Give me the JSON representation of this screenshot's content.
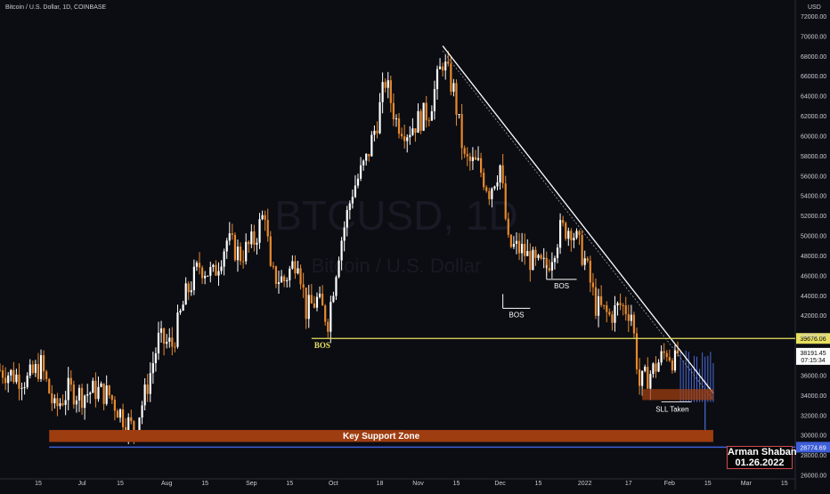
{
  "header": {
    "symbol_line": "Bitcoin / U.S. Dollar, 1D, COINBASE"
  },
  "price_axis": {
    "currency": "USD"
  },
  "watermark": {
    "symbol": "BTCUSD, 1D",
    "name": "Bitcoin / U.S. Dollar"
  },
  "author": {
    "name": "Arman Shaban",
    "date": "01.26.2022"
  },
  "colors": {
    "background": "#0c0d12",
    "up_candle": "#ffffff",
    "down_candle": "#e88a2e",
    "bos_line": "#e8e060",
    "support_fill": "#9e3d10",
    "support_line": "#3e5fd8",
    "trendline": "#ffffff",
    "liquidity_fill": "#9e3d10",
    "wick_blue": "#4a6ad8",
    "price_tag": "#ffffff"
  },
  "chart_data": {
    "type": "candlestick",
    "title": "Bitcoin / U.S. Dollar, 1D, COINBASE",
    "ylabel": "USD",
    "ylim": [
      25600,
      73600
    ],
    "y_ticks": [
      26000,
      28000,
      30000,
      32000,
      34000,
      36000,
      38000,
      40000,
      42000,
      44000,
      46000,
      48000,
      50000,
      52000,
      54000,
      56000,
      58000,
      60000,
      62000,
      64000,
      66000,
      68000,
      70000,
      72000
    ],
    "y_tick_labels": [
      "26000.00",
      "28000.00",
      "30000.00",
      "32000.00",
      "34000.00",
      "36000.00",
      "38000.00",
      "40000.00",
      "42000.00",
      "44000.00",
      "46000.00",
      "48000.00",
      "50000.00",
      "52000.00",
      "54000.00",
      "56000.00",
      "58000.00",
      "60000.00",
      "62000.00",
      "64000.00",
      "66000.00",
      "68000.00",
      "70000.00",
      "72000.00"
    ],
    "x_range": [
      "2021-06-01",
      "2022-03-19"
    ],
    "x_ticks": [
      {
        "date": "2021-06-01",
        "label": "Jun"
      },
      {
        "date": "2021-06-15",
        "label": "15"
      },
      {
        "date": "2021-07-01",
        "label": "Jul"
      },
      {
        "date": "2021-07-15",
        "label": "15"
      },
      {
        "date": "2021-08-01",
        "label": "Aug"
      },
      {
        "date": "2021-08-15",
        "label": "15"
      },
      {
        "date": "2021-09-01",
        "label": "Sep"
      },
      {
        "date": "2021-09-15",
        "label": "15"
      },
      {
        "date": "2021-10-01",
        "label": "Oct"
      },
      {
        "date": "2021-10-18",
        "label": "18"
      },
      {
        "date": "2021-11-01",
        "label": "Nov"
      },
      {
        "date": "2021-11-15",
        "label": "15"
      },
      {
        "date": "2021-12-01",
        "label": "Dec"
      },
      {
        "date": "2021-12-15",
        "label": "15"
      },
      {
        "date": "2022-01-01",
        "label": "2022"
      },
      {
        "date": "2022-01-17",
        "label": "17"
      },
      {
        "date": "2022-02-01",
        "label": "Feb"
      },
      {
        "date": "2022-02-15",
        "label": "15"
      },
      {
        "date": "2022-03-01",
        "label": "Mar"
      },
      {
        "date": "2022-03-15",
        "label": "15"
      }
    ],
    "closes": [
      {
        "date": "2021-06-01",
        "close": 36500
      },
      {
        "date": "2021-06-06",
        "close": 36000
      },
      {
        "date": "2021-06-11",
        "close": 35500
      },
      {
        "date": "2021-06-16",
        "close": 37000
      },
      {
        "date": "2021-06-21",
        "close": 32500
      },
      {
        "date": "2021-06-26",
        "close": 34500
      },
      {
        "date": "2021-07-01",
        "close": 34000
      },
      {
        "date": "2021-07-06",
        "close": 34500
      },
      {
        "date": "2021-07-11",
        "close": 34000
      },
      {
        "date": "2021-07-16",
        "close": 31800
      },
      {
        "date": "2021-07-20",
        "close": 30500
      },
      {
        "date": "2021-07-24",
        "close": 34000
      },
      {
        "date": "2021-07-29",
        "close": 39500
      },
      {
        "date": "2021-08-03",
        "close": 39000
      },
      {
        "date": "2021-08-08",
        "close": 44000
      },
      {
        "date": "2021-08-13",
        "close": 47000
      },
      {
        "date": "2021-08-18",
        "close": 46000
      },
      {
        "date": "2021-08-23",
        "close": 49500
      },
      {
        "date": "2021-08-28",
        "close": 48000
      },
      {
        "date": "2021-09-02",
        "close": 49500
      },
      {
        "date": "2021-09-06",
        "close": 52500
      },
      {
        "date": "2021-09-08",
        "close": 46000
      },
      {
        "date": "2021-09-13",
        "close": 45500
      },
      {
        "date": "2021-09-18",
        "close": 48000
      },
      {
        "date": "2021-09-21",
        "close": 42500
      },
      {
        "date": "2021-09-25",
        "close": 43500
      },
      {
        "date": "2021-09-29",
        "close": 41500
      },
      {
        "date": "2021-10-03",
        "close": 48500
      },
      {
        "date": "2021-10-08",
        "close": 54500
      },
      {
        "date": "2021-10-13",
        "close": 57500
      },
      {
        "date": "2021-10-17",
        "close": 61500
      },
      {
        "date": "2021-10-20",
        "close": 65500
      },
      {
        "date": "2021-10-24",
        "close": 61500
      },
      {
        "date": "2021-10-28",
        "close": 60500
      },
      {
        "date": "2021-11-01",
        "close": 61500
      },
      {
        "date": "2021-11-05",
        "close": 62500
      },
      {
        "date": "2021-11-10",
        "close": 67500
      },
      {
        "date": "2021-11-14",
        "close": 64500
      },
      {
        "date": "2021-11-18",
        "close": 57500
      },
      {
        "date": "2021-11-23",
        "close": 57000
      },
      {
        "date": "2021-11-27",
        "close": 54500
      },
      {
        "date": "2021-12-01",
        "close": 57000
      },
      {
        "date": "2021-12-04",
        "close": 49000
      },
      {
        "date": "2021-12-09",
        "close": 48500
      },
      {
        "date": "2021-12-14",
        "close": 47000
      },
      {
        "date": "2021-12-18",
        "close": 46800
      },
      {
        "date": "2021-12-23",
        "close": 50500
      },
      {
        "date": "2021-12-27",
        "close": 50800
      },
      {
        "date": "2022-01-01",
        "close": 47500
      },
      {
        "date": "2022-01-05",
        "close": 43000
      },
      {
        "date": "2022-01-10",
        "close": 41900
      },
      {
        "date": "2022-01-14",
        "close": 43000
      },
      {
        "date": "2022-01-18",
        "close": 42300
      },
      {
        "date": "2022-01-21",
        "close": 35000
      },
      {
        "date": "2022-01-26",
        "close": 36500
      },
      {
        "date": "2022-01-31",
        "close": 38500
      },
      {
        "date": "2022-02-03",
        "close": 37300
      },
      {
        "date": "2022-02-04",
        "close": 38191.45
      }
    ],
    "levels": [
      {
        "name": "BOS",
        "price": 39676.06,
        "label": "BOS",
        "price_label": "39676.06"
      },
      {
        "name": "Key Support Zone",
        "price_low": 29300,
        "price_high": 30500,
        "label": "Key Support Zone"
      },
      {
        "name": "support",
        "price": 28774.69,
        "price_label": "28774.69"
      }
    ],
    "bos_markers": [
      {
        "label": "BOS",
        "date_start": "2021-12-02",
        "date_end": "2021-12-12",
        "price": 42700
      },
      {
        "label": "BOS",
        "date_start": "2021-12-18",
        "date_end": "2021-12-29",
        "price": 45600
      }
    ],
    "trendline": {
      "start": {
        "date": "2021-11-10",
        "price": 69000
      },
      "end": {
        "date": "2022-02-17",
        "price": 34200
      }
    },
    "liquidity_zone": {
      "label": "SLL Taken",
      "date_start": "2022-01-22",
      "date_end": "2022-02-17",
      "price_low": 33500,
      "price_high": 34600
    },
    "current_price": {
      "value": "38191.45",
      "countdown": "07:15:34"
    }
  }
}
